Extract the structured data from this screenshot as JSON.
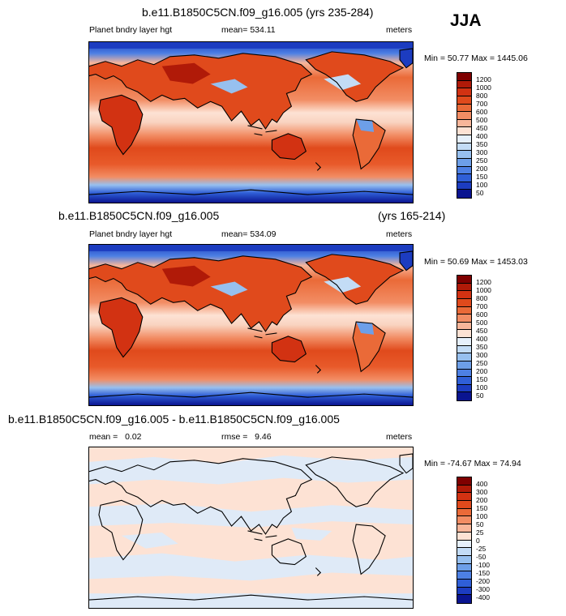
{
  "season": "JJA",
  "panels": [
    {
      "title": "b.e11.B1850C5CN.f09_g16.005 (yrs 235-284)",
      "title_right": "",
      "variable": "Planet bndry layer hgt",
      "stat_center": "mean= 534.11",
      "stat_left": "",
      "units": "meters",
      "minmax": "Min =  50.77 Max = 1445.06",
      "colorbar_labels": [
        "1200",
        "1000",
        "800",
        "700",
        "600",
        "500",
        "450",
        "400",
        "350",
        "300",
        "250",
        "200",
        "150",
        "100",
        "50"
      ]
    },
    {
      "title": "b.e11.B1850C5CN.f09_g16.005",
      "title_right": "(yrs 165-214)",
      "variable": "Planet bndry layer hgt",
      "stat_center": "mean= 534.09",
      "stat_left": "",
      "units": "meters",
      "minmax": "Min =  50.69 Max = 1453.03",
      "colorbar_labels": [
        "1200",
        "1000",
        "800",
        "700",
        "600",
        "500",
        "450",
        "400",
        "350",
        "300",
        "250",
        "200",
        "150",
        "100",
        "50"
      ]
    },
    {
      "title": "b.e11.B1850C5CN.f09_g16.005 - b.e11.B1850C5CN.f09_g16.005",
      "title_right": "",
      "variable": "",
      "stat_left": "mean =   0.02",
      "stat_center": "rmse =   9.46",
      "units": "meters",
      "minmax": "Min = -74.67 Max = 74.94",
      "colorbar_labels": [
        "400",
        "300",
        "200",
        "150",
        "100",
        "50",
        "25",
        "0",
        "-25",
        "-50",
        "-100",
        "-150",
        "-200",
        "-300",
        "-400"
      ]
    }
  ],
  "colors": {
    "abs_scale": [
      "#7f0000",
      "#b01a08",
      "#d23212",
      "#e04a1c",
      "#ea6a38",
      "#f28d64",
      "#f8b69a",
      "#fde2d4",
      "#e6f0fb",
      "#c3dcf6",
      "#97c0ef",
      "#6d9fe8",
      "#4d80e4",
      "#2f5fd7",
      "#1c3cc0",
      "#0a1490"
    ],
    "diff_scale": [
      "#7f0000",
      "#b01a08",
      "#d23212",
      "#e04a1c",
      "#ea6a38",
      "#f28d64",
      "#f8b69a",
      "#fde2d4",
      "#e6f0fb",
      "#c3dcf6",
      "#97c0ef",
      "#6d9fe8",
      "#4d80e4",
      "#2f5fd7",
      "#1c3cc0",
      "#0a1490"
    ],
    "ocean_mid": "#e84e22",
    "ocean_eq": "#f9d3c0",
    "polar": "#1c3cc0",
    "land_high": "#d8351a",
    "diff_pos": "#fde2d4",
    "diff_neg": "#dfeaf7"
  }
}
